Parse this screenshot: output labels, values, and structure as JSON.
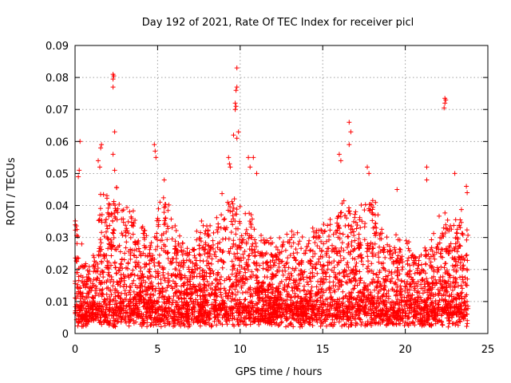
{
  "chart_data": {
    "type": "scatter",
    "title": "Day 192 of 2021, Rate Of TEC Index for receiver picl",
    "xlabel": "GPS time / hours",
    "ylabel": "ROTI / TECUs",
    "xlim": [
      0,
      25
    ],
    "ylim": [
      0,
      0.09
    ],
    "x_ticks": [
      0,
      5,
      10,
      15,
      20,
      25
    ],
    "y_ticks": [
      0,
      0.01,
      0.02,
      0.03,
      0.04,
      0.05,
      0.06,
      0.07,
      0.08,
      0.09
    ],
    "x_tick_labels": [
      "0",
      "5",
      "10",
      "15",
      "20",
      "25"
    ],
    "y_tick_labels": [
      "0",
      "0.01",
      "0.02",
      "0.03",
      "0.04",
      "0.05",
      "0.06",
      "0.07",
      "0.08",
      "0.09"
    ],
    "grid": true,
    "marker": "+",
    "color": "#ff0000",
    "series": [
      {
        "name": "ROTI",
        "envelope": {
          "x": [
            0,
            0.5,
            1,
            1.5,
            2,
            2.5,
            3,
            3.5,
            4,
            4.5,
            5,
            5.5,
            6,
            6.5,
            7,
            7.5,
            8,
            8.5,
            9,
            9.5,
            10,
            10.5,
            11,
            11.5,
            12,
            12.5,
            13,
            13.5,
            14,
            14.5,
            15,
            15.5,
            16,
            16.5,
            17,
            17.5,
            18,
            18.5,
            19,
            19.5,
            20,
            20.5,
            21,
            21.5,
            22,
            22.5,
            23,
            23.5,
            23.8
          ],
          "y_max": [
            0.04,
            0.025,
            0.02,
            0.045,
            0.043,
            0.045,
            0.04,
            0.038,
            0.035,
            0.03,
            0.04,
            0.045,
            0.033,
            0.03,
            0.025,
            0.035,
            0.032,
            0.035,
            0.045,
            0.042,
            0.04,
            0.042,
            0.035,
            0.03,
            0.028,
            0.03,
            0.035,
            0.03,
            0.03,
            0.035,
            0.038,
            0.035,
            0.04,
            0.045,
            0.04,
            0.042,
            0.044,
            0.035,
            0.028,
            0.03,
            0.032,
            0.028,
            0.025,
            0.03,
            0.036,
            0.038,
            0.035,
            0.04,
            0.03
          ]
        },
        "highlights": [
          {
            "x": 0.3,
            "y": 0.06
          },
          {
            "x": 0.2,
            "y": 0.049
          },
          {
            "x": 0.25,
            "y": 0.051
          },
          {
            "x": 2.3,
            "y": 0.081
          },
          {
            "x": 2.35,
            "y": 0.0805
          },
          {
            "x": 2.3,
            "y": 0.0795
          },
          {
            "x": 2.3,
            "y": 0.077
          },
          {
            "x": 2.4,
            "y": 0.063
          },
          {
            "x": 2.3,
            "y": 0.056
          },
          {
            "x": 1.6,
            "y": 0.059
          },
          {
            "x": 1.55,
            "y": 0.058
          },
          {
            "x": 1.4,
            "y": 0.054
          },
          {
            "x": 1.5,
            "y": 0.052
          },
          {
            "x": 2.4,
            "y": 0.051
          },
          {
            "x": 4.8,
            "y": 0.059
          },
          {
            "x": 4.85,
            "y": 0.057
          },
          {
            "x": 4.9,
            "y": 0.055
          },
          {
            "x": 5.4,
            "y": 0.048
          },
          {
            "x": 9.8,
            "y": 0.083
          },
          {
            "x": 9.8,
            "y": 0.077
          },
          {
            "x": 9.75,
            "y": 0.076
          },
          {
            "x": 9.7,
            "y": 0.072
          },
          {
            "x": 9.75,
            "y": 0.071
          },
          {
            "x": 9.7,
            "y": 0.07
          },
          {
            "x": 9.6,
            "y": 0.062
          },
          {
            "x": 9.9,
            "y": 0.063
          },
          {
            "x": 9.8,
            "y": 0.061
          },
          {
            "x": 9.3,
            "y": 0.055
          },
          {
            "x": 9.35,
            "y": 0.053
          },
          {
            "x": 9.4,
            "y": 0.052
          },
          {
            "x": 10.5,
            "y": 0.055
          },
          {
            "x": 10.8,
            "y": 0.055
          },
          {
            "x": 10.6,
            "y": 0.052
          },
          {
            "x": 11.0,
            "y": 0.05
          },
          {
            "x": 16.6,
            "y": 0.066
          },
          {
            "x": 16.7,
            "y": 0.063
          },
          {
            "x": 16.6,
            "y": 0.059
          },
          {
            "x": 16.0,
            "y": 0.056
          },
          {
            "x": 16.1,
            "y": 0.054
          },
          {
            "x": 17.7,
            "y": 0.052
          },
          {
            "x": 17.8,
            "y": 0.05
          },
          {
            "x": 22.4,
            "y": 0.0735
          },
          {
            "x": 22.45,
            "y": 0.073
          },
          {
            "x": 22.4,
            "y": 0.072
          },
          {
            "x": 22.35,
            "y": 0.0705
          },
          {
            "x": 21.3,
            "y": 0.052
          },
          {
            "x": 21.3,
            "y": 0.048
          },
          {
            "x": 23.0,
            "y": 0.05
          },
          {
            "x": 19.5,
            "y": 0.045
          },
          {
            "x": 23.7,
            "y": 0.046
          },
          {
            "x": 23.75,
            "y": 0.044
          }
        ]
      }
    ]
  }
}
